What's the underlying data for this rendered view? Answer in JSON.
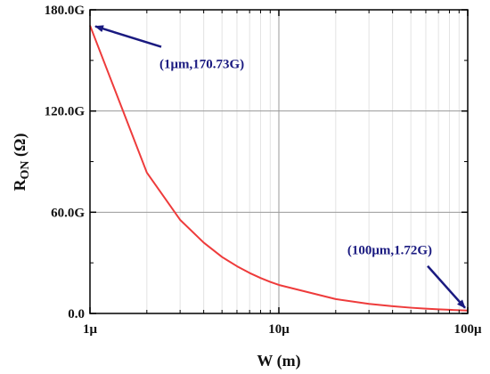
{
  "chart_data": {
    "type": "line",
    "title": "",
    "xlabel": "W (m)",
    "ylabel": "R",
    "ylabel_sub": "ON",
    "ylabel_unit": " (Ω)",
    "x_scale": "log",
    "xlim": [
      1e-06,
      0.0001
    ],
    "ylim": [
      0,
      180000000000.0
    ],
    "x_ticks": [
      {
        "value": 1e-06,
        "label": "1μ"
      },
      {
        "value": 1e-05,
        "label": "10μ"
      },
      {
        "value": 0.0001,
        "label": "100μ"
      }
    ],
    "y_ticks": [
      {
        "value": 0,
        "label": "0.0"
      },
      {
        "value": 60000000000.0,
        "label": "60.0G"
      },
      {
        "value": 120000000000.0,
        "label": "120.0G"
      },
      {
        "value": 180000000000.0,
        "label": "180.0G"
      }
    ],
    "grid": true,
    "series": [
      {
        "color": "#ee3b3b",
        "x": [
          1e-06,
          2e-06,
          3e-06,
          4e-06,
          5e-06,
          6e-06,
          7e-06,
          8e-06,
          9e-06,
          1e-05,
          2e-05,
          3e-05,
          4e-05,
          5e-05,
          6e-05,
          7e-05,
          8e-05,
          9e-05,
          0.0001
        ],
        "y": [
          170730000000.0,
          83500000000.0,
          55500000000.0,
          42000000000.0,
          33500000000.0,
          28000000000.0,
          24000000000.0,
          21000000000.0,
          18700000000.0,
          16900000000.0,
          8500000000.0,
          5700000000.0,
          4300000000.0,
          3400000000.0,
          2850000000.0,
          2450000000.0,
          2150000000.0,
          1900000000.0,
          1720000000.0
        ]
      }
    ],
    "annotations": [
      {
        "text": "(1μm,170.73G)",
        "x": 1e-06,
        "y": 170730000000.0,
        "color": "#1a1a80"
      },
      {
        "text": "(100μm,1.72G)",
        "x": 0.0001,
        "y": 1720000000.0,
        "color": "#1a1a80"
      }
    ]
  }
}
